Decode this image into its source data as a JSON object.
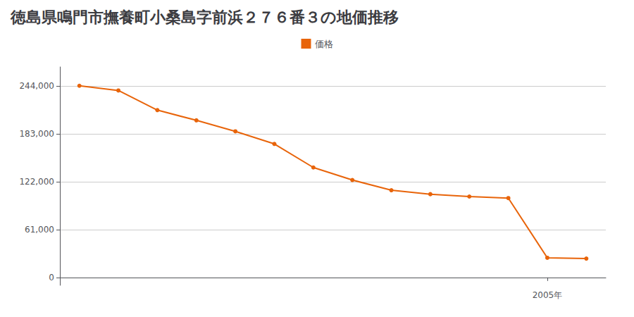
{
  "chart_data": {
    "type": "line",
    "title": "徳島県鳴門市撫養町小桑島字前浜２７６番３の地価推移",
    "x": [
      1993,
      1994,
      1995,
      1996,
      1997,
      1998,
      1999,
      2000,
      2001,
      2002,
      2003,
      2004,
      2005,
      2006
    ],
    "series": [
      {
        "name": "価格",
        "color": "#E8640A",
        "values": [
          244000,
          238000,
          213000,
          200000,
          186000,
          170000,
          140000,
          124000,
          111000,
          106000,
          103000,
          101000,
          25000,
          24000
        ]
      }
    ],
    "xlim": [
      1992.5,
      2006.5
    ],
    "xticks": [
      {
        "value": 2005,
        "label": "2005年"
      }
    ],
    "ylim": [
      -10000,
      268000
    ],
    "yticks": [
      0,
      {
        "value": 61000,
        "label": "61,000"
      },
      {
        "value": 122000,
        "label": "122,000"
      },
      {
        "value": 183000,
        "label": "183,000"
      },
      {
        "value": 244000,
        "label": "244,000"
      }
    ],
    "grid": true,
    "legend": "top",
    "marker": "circle"
  }
}
